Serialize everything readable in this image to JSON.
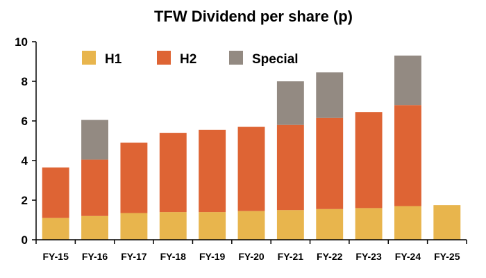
{
  "chart_data": {
    "type": "bar",
    "stacked": true,
    "title": "TFW Dividend per share (p)",
    "xlabel": "",
    "ylabel": "",
    "ylim": [
      0,
      10
    ],
    "yticks": [
      0,
      2,
      4,
      6,
      8,
      10
    ],
    "grid": false,
    "legend_position": "top-left",
    "categories": [
      "FY-15",
      "FY-16",
      "FY-17",
      "FY-18",
      "FY-19",
      "FY-20",
      "FY-21",
      "FY-22",
      "FY-23",
      "FY-24",
      "FY-25"
    ],
    "series": [
      {
        "name": "H1",
        "color": "#E8B54D",
        "values": [
          1.1,
          1.2,
          1.35,
          1.4,
          1.4,
          1.45,
          1.5,
          1.55,
          1.6,
          1.7,
          1.75
        ]
      },
      {
        "name": "H2",
        "color": "#DE6434",
        "values": [
          2.55,
          2.85,
          3.55,
          4.0,
          4.15,
          4.25,
          4.3,
          4.6,
          4.85,
          5.1,
          0
        ]
      },
      {
        "name": "Special",
        "color": "#938A82",
        "values": [
          0,
          2.0,
          0,
          0,
          0,
          0,
          2.2,
          2.3,
          0,
          2.5,
          0
        ]
      }
    ]
  }
}
